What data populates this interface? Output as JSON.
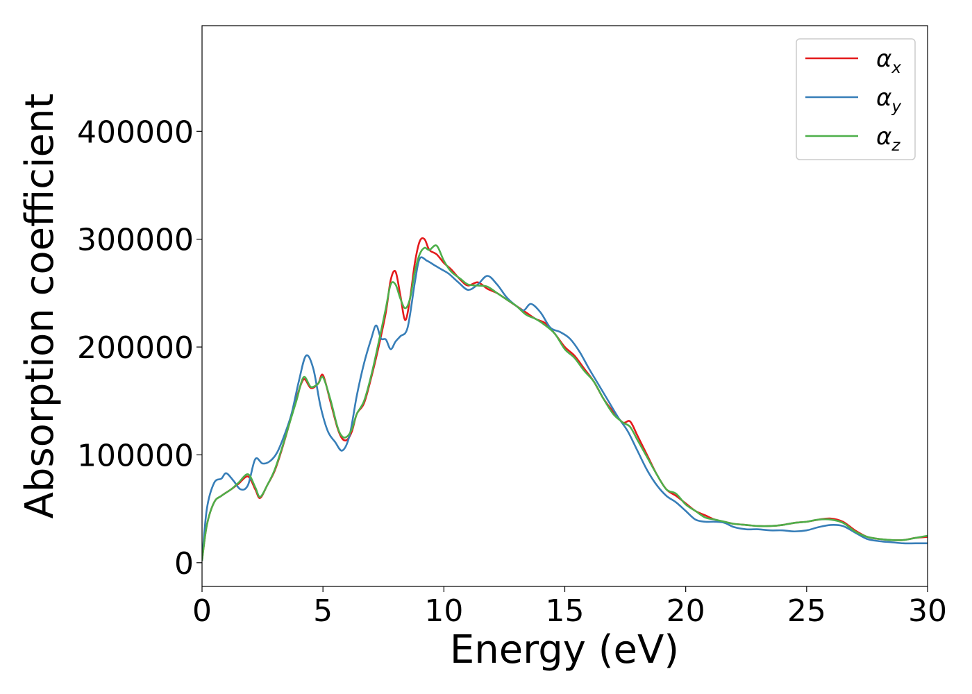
{
  "chart_data": {
    "type": "line",
    "title": "",
    "xlabel": "Energy (eV)",
    "ylabel": "Absorption coefficient",
    "xlim": [
      0,
      30
    ],
    "ylim": [
      -22000,
      498000
    ],
    "xticks": [
      0,
      5,
      10,
      15,
      20,
      25,
      30
    ],
    "yticks": [
      0,
      100000,
      200000,
      300000,
      400000
    ],
    "xtick_labels": [
      "0",
      "5",
      "10",
      "15",
      "20",
      "25",
      "30"
    ],
    "ytick_labels": [
      "0",
      "100000",
      "200000",
      "300000",
      "400000"
    ],
    "grid": false,
    "legend_position": "top-right",
    "series": [
      {
        "name": "α",
        "subscript": "x",
        "color": "#e41a1c",
        "x": [
          0,
          0.2,
          0.5,
          0.8,
          1.2,
          1.5,
          1.9,
          2.2,
          2.4,
          2.7,
          3.0,
          3.3,
          3.6,
          3.9,
          4.2,
          4.5,
          4.8,
          5.0,
          5.3,
          5.6,
          5.8,
          6.0,
          6.2,
          6.4,
          6.7,
          7.0,
          7.3,
          7.6,
          7.8,
          8.0,
          8.2,
          8.4,
          8.6,
          8.8,
          9.0,
          9.2,
          9.4,
          9.7,
          10.0,
          10.3,
          10.7,
          11.0,
          11.4,
          11.8,
          12.2,
          12.6,
          13.0,
          13.4,
          13.8,
          14.2,
          14.6,
          15.0,
          15.4,
          15.8,
          16.2,
          16.6,
          17.0,
          17.4,
          17.7,
          18.0,
          18.4,
          18.8,
          19.2,
          19.6,
          20.0,
          20.4,
          20.8,
          21.2,
          21.6,
          22.0,
          22.5,
          23.0,
          23.5,
          24.0,
          24.5,
          25.0,
          25.5,
          26.0,
          26.5,
          27.0,
          27.5,
          28.0,
          28.5,
          29.0,
          29.5,
          30.0
        ],
        "y": [
          2000,
          35000,
          56000,
          62000,
          68000,
          73000,
          80000,
          68000,
          60000,
          72000,
          85000,
          105000,
          128000,
          152000,
          170000,
          162000,
          166000,
          174000,
          150000,
          125000,
          115000,
          114000,
          122000,
          138000,
          148000,
          172000,
          200000,
          232000,
          262000,
          270000,
          248000,
          225000,
          245000,
          278000,
          298000,
          300000,
          290000,
          286000,
          278000,
          272000,
          262000,
          257000,
          260000,
          254000,
          250000,
          244000,
          238000,
          232000,
          226000,
          222000,
          212000,
          200000,
          192000,
          180000,
          168000,
          152000,
          140000,
          130000,
          131000,
          118000,
          100000,
          82000,
          68000,
          62000,
          55000,
          48000,
          44000,
          40000,
          38000,
          36000,
          35000,
          34000,
          34000,
          35000,
          37000,
          38000,
          40000,
          41000,
          38000,
          30000,
          24000,
          22000,
          21000,
          21000,
          23000,
          24000
        ]
      },
      {
        "name": "α",
        "subscript": "y",
        "color": "#377eb8",
        "x": [
          0,
          0.2,
          0.5,
          0.8,
          1.0,
          1.3,
          1.6,
          1.9,
          2.2,
          2.5,
          2.8,
          3.1,
          3.4,
          3.7,
          4.0,
          4.3,
          4.6,
          4.9,
          5.2,
          5.5,
          5.8,
          6.1,
          6.4,
          6.7,
          7.0,
          7.2,
          7.4,
          7.6,
          7.8,
          8.0,
          8.2,
          8.5,
          8.8,
          9.0,
          9.3,
          9.6,
          9.9,
          10.2,
          10.6,
          11.0,
          11.4,
          11.8,
          12.2,
          12.6,
          13.0,
          13.3,
          13.6,
          14.0,
          14.4,
          14.8,
          15.2,
          15.6,
          16.0,
          16.4,
          16.8,
          17.2,
          17.6,
          18.0,
          18.4,
          18.8,
          19.2,
          19.6,
          20.0,
          20.4,
          20.8,
          21.2,
          21.6,
          22.0,
          22.5,
          23.0,
          23.5,
          24.0,
          24.5,
          25.0,
          25.5,
          26.0,
          26.5,
          27.0,
          27.5,
          28.0,
          28.5,
          29.0,
          29.5,
          30.0
        ],
        "y": [
          2000,
          50000,
          74000,
          78000,
          83000,
          76000,
          68000,
          72000,
          96000,
          92000,
          94000,
          102000,
          118000,
          138000,
          168000,
          192000,
          180000,
          145000,
          122000,
          112000,
          104000,
          118000,
          155000,
          185000,
          208000,
          220000,
          208000,
          207000,
          198000,
          205000,
          210000,
          218000,
          260000,
          282000,
          280000,
          276000,
          272000,
          268000,
          260000,
          253000,
          258000,
          266000,
          258000,
          246000,
          238000,
          234000,
          240000,
          232000,
          218000,
          214000,
          208000,
          196000,
          180000,
          165000,
          150000,
          135000,
          122000,
          104000,
          86000,
          72000,
          62000,
          56000,
          48000,
          40000,
          38000,
          38000,
          37000,
          33000,
          31000,
          31000,
          30000,
          30000,
          29000,
          30000,
          33000,
          35000,
          34000,
          28000,
          22000,
          20000,
          19000,
          18000,
          18000,
          18000
        ]
      },
      {
        "name": "α",
        "subscript": "z",
        "color": "#4daf4a",
        "x": [
          0,
          0.2,
          0.5,
          0.8,
          1.2,
          1.5,
          1.9,
          2.2,
          2.4,
          2.7,
          3.0,
          3.3,
          3.6,
          3.9,
          4.2,
          4.5,
          4.8,
          5.0,
          5.3,
          5.6,
          5.8,
          6.0,
          6.2,
          6.4,
          6.7,
          7.0,
          7.3,
          7.6,
          7.8,
          8.0,
          8.2,
          8.4,
          8.6,
          8.8,
          9.0,
          9.2,
          9.4,
          9.7,
          10.0,
          10.3,
          10.7,
          11.0,
          11.4,
          11.8,
          12.2,
          12.6,
          13.0,
          13.4,
          13.8,
          14.2,
          14.6,
          15.0,
          15.4,
          15.8,
          16.2,
          16.6,
          17.0,
          17.4,
          17.7,
          18.0,
          18.4,
          18.8,
          19.2,
          19.6,
          20.0,
          20.4,
          20.8,
          21.2,
          21.6,
          22.0,
          22.5,
          23.0,
          23.5,
          24.0,
          24.5,
          25.0,
          25.5,
          26.0,
          26.5,
          27.0,
          27.5,
          28.0,
          28.5,
          29.0,
          29.5,
          30.0
        ],
        "y": [
          2000,
          35000,
          56000,
          62000,
          68000,
          74000,
          82000,
          70000,
          61000,
          72000,
          86000,
          106000,
          128000,
          150000,
          172000,
          163000,
          166000,
          172000,
          152000,
          126000,
          117000,
          117000,
          124000,
          138000,
          150000,
          174000,
          204000,
          236000,
          258000,
          258000,
          245000,
          236000,
          245000,
          270000,
          286000,
          292000,
          290000,
          294000,
          280000,
          270000,
          263000,
          258000,
          257000,
          256000,
          250000,
          244000,
          238000,
          230000,
          226000,
          220000,
          212000,
          198000,
          190000,
          178000,
          168000,
          152000,
          138000,
          130000,
          126000,
          114000,
          98000,
          82000,
          68000,
          64000,
          54000,
          48000,
          42000,
          40000,
          38000,
          36000,
          35000,
          34000,
          34000,
          35000,
          37000,
          38000,
          40000,
          40000,
          37000,
          29000,
          24000,
          22000,
          21000,
          21000,
          23000,
          25000
        ]
      }
    ]
  }
}
